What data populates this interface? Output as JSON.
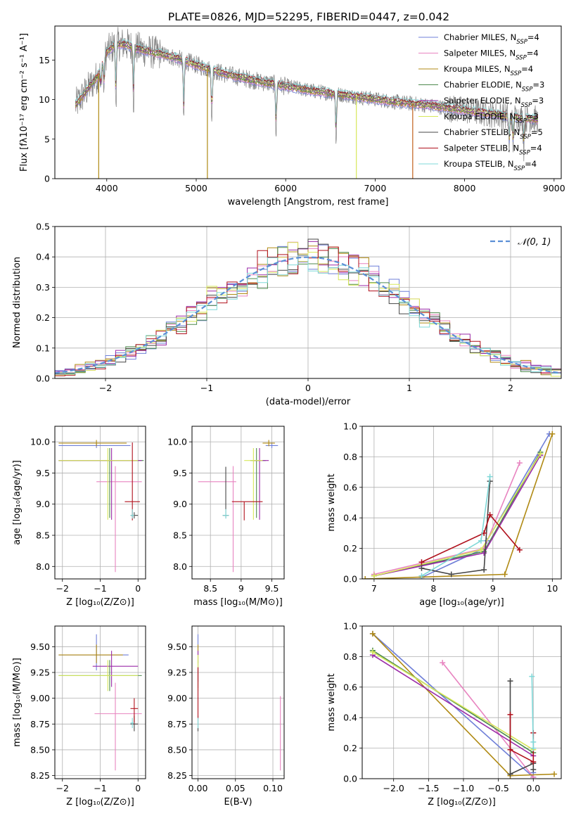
{
  "figure_title": "PLATE=0826, MJD=52295, FIBERID=0447, z=0.042",
  "models": [
    {
      "name": "Chabrier MILES, N",
      "sub": "SSP",
      "eq": "=4",
      "color": "#6f7fd8"
    },
    {
      "name": "Salpeter MILES, N",
      "sub": "SSP",
      "eq": "=4",
      "color": "#e884c0"
    },
    {
      "name": "Kroupa MILES, N",
      "sub": "SSP",
      "eq": "=4",
      "color": "#b08a14"
    },
    {
      "name": "Chabrier ELODIE, N",
      "sub": "SSP",
      "eq": "=3",
      "color": "#4d8a4d"
    },
    {
      "name": "Salpeter ELODIE, N",
      "sub": "SSP",
      "eq": "=3",
      "color": "#9a2aa8"
    },
    {
      "name": "Kroupa ELODIE, N",
      "sub": "SSP",
      "eq": "=3",
      "color": "#d7e85a"
    },
    {
      "name": "Chabrier STELIB, N",
      "sub": "SSP",
      "eq": "=5",
      "color": "#474747"
    },
    {
      "name": "Salpeter STELIB, N",
      "sub": "SSP",
      "eq": "=4",
      "color": "#b0101c"
    },
    {
      "name": "Kroupa STELIB, N",
      "sub": "SSP",
      "eq": "=4",
      "color": "#7fd8d8"
    }
  ],
  "chart_data": [
    {
      "id": "spectrum",
      "type": "line",
      "title": "PLATE=0826, MJD=52295, FIBERID=0447, z=0.042",
      "xlabel": "wavelength [Angstrom, rest frame]",
      "ylabel": "Flux [fλ10⁻¹⁷ erg cm⁻² s⁻¹ A⁻¹]",
      "xlim": [
        3420,
        9080
      ],
      "ylim": [
        0,
        19.3
      ],
      "xticks": [
        4000,
        5000,
        6000,
        7000,
        8000,
        9000
      ],
      "yticks": [
        0,
        5,
        10,
        15
      ],
      "grid": false,
      "legend": "top-right",
      "data_color": "#808080",
      "continuum": [
        [
          3650,
          9.3
        ],
        [
          3700,
          10.0
        ],
        [
          3800,
          11.5
        ],
        [
          3900,
          13.0
        ],
        [
          4000,
          16.0
        ],
        [
          4100,
          17.0
        ],
        [
          4200,
          17.0
        ],
        [
          4300,
          16.6
        ],
        [
          4500,
          16.0
        ],
        [
          4700,
          15.5
        ],
        [
          4900,
          14.8
        ],
        [
          5100,
          14.0
        ],
        [
          5300,
          13.3
        ],
        [
          5500,
          12.8
        ],
        [
          5700,
          12.3
        ],
        [
          5900,
          11.9
        ],
        [
          6100,
          11.5
        ],
        [
          6300,
          11.1
        ],
        [
          6500,
          10.8
        ],
        [
          6700,
          10.5
        ],
        [
          6900,
          10.2
        ],
        [
          7100,
          9.9
        ],
        [
          7300,
          9.6
        ],
        [
          7500,
          9.4
        ],
        [
          7700,
          9.1
        ],
        [
          7900,
          8.8
        ],
        [
          8100,
          8.5
        ],
        [
          8300,
          8.2
        ],
        [
          8500,
          7.9
        ],
        [
          8700,
          7.6
        ],
        [
          8820,
          7.5
        ]
      ],
      "absorption_features": [
        [
          3934,
          5.0
        ],
        [
          3969,
          6.0
        ],
        [
          4102,
          12.0
        ],
        [
          4300,
          11.5
        ],
        [
          4861,
          12.5
        ],
        [
          5175,
          11.8
        ],
        [
          5893,
          10.5
        ],
        [
          6563,
          10.0
        ],
        [
          8498,
          6.5
        ],
        [
          8542,
          6.0
        ],
        [
          8662,
          6.2
        ]
      ],
      "dropouts": [
        [
          3910,
          "#b08a14"
        ],
        [
          5125,
          "#b08a14"
        ],
        [
          6790,
          "#d7e85a"
        ],
        [
          7420,
          "#c0601c"
        ]
      ]
    },
    {
      "id": "residuals",
      "type": "line",
      "xlabel": "(data-model)/error",
      "ylabel": "Normed distribution",
      "xlim": [
        -2.5,
        2.5
      ],
      "ylim": [
        0,
        0.5
      ],
      "xticks": [
        -2,
        -1,
        0,
        1,
        2
      ],
      "yticks": [
        0.0,
        0.1,
        0.2,
        0.3,
        0.4,
        0.5
      ],
      "grid": true,
      "legend": "top-right",
      "reference": {
        "label": "𝒩(0, 1)",
        "mu": 0,
        "sigma": 1,
        "color": "#5b8fd6"
      },
      "bin_width": 0.1
    },
    {
      "id": "age-vs-z",
      "type": "scatter",
      "xlabel": "Z [log₁₀(Z/Z⊙)]",
      "ylabel": "age  [log₁₀(age/yr)]",
      "xlim": [
        -2.2,
        0.2
      ],
      "ylim": [
        7.8,
        10.25
      ],
      "xticks": [
        -2,
        -1,
        0
      ],
      "yticks": [
        8.0,
        8.5,
        9.0,
        9.5,
        10.0
      ],
      "grid": true,
      "points": [
        {
          "m": 0,
          "x": -1.1,
          "xerr": [
            1.0,
            0.9
          ],
          "y": 9.94,
          "yerr": [
            0.04,
            0.05
          ]
        },
        {
          "m": 1,
          "x": -0.6,
          "xerr": [
            0.5,
            0.7
          ],
          "y": 9.36,
          "yerr": [
            1.45,
            0.25
          ]
        },
        {
          "m": 2,
          "x": -1.1,
          "xerr": [
            1.0,
            0.8
          ],
          "y": 9.98,
          "yerr": [
            0.05,
            0.05
          ]
        },
        {
          "m": 3,
          "x": -0.75,
          "xerr": [
            1.35,
            0.9
          ],
          "y": 9.7,
          "yerr": [
            0.92,
            0.2
          ]
        },
        {
          "m": 4,
          "x": -0.7,
          "xerr": [
            1.4,
            0.8
          ],
          "y": 9.7,
          "yerr": [
            0.95,
            0.2
          ]
        },
        {
          "m": 5,
          "x": -0.8,
          "xerr": [
            1.3,
            0.8
          ],
          "y": 9.7,
          "yerr": [
            0.95,
            0.2
          ]
        },
        {
          "m": 6,
          "x": -0.1,
          "xerr": [
            0.1,
            0.1
          ],
          "y": 8.82,
          "yerr": [
            0.05,
            0.05
          ]
        },
        {
          "m": 7,
          "x": -0.15,
          "xerr": [
            0.2,
            0.2
          ],
          "y": 9.04,
          "yerr": [
            0.3,
            0.95
          ]
        },
        {
          "m": 8,
          "x": -0.15,
          "xerr": [
            0.05,
            0.05
          ],
          "y": 8.82,
          "yerr": [
            0.05,
            0.1
          ]
        }
      ]
    },
    {
      "id": "age-vs-mass",
      "type": "scatter",
      "xlabel": "mass [log₁₀(M/M⊙)]",
      "ylabel": "",
      "xlim": [
        8.2,
        9.7
      ],
      "ylim": [
        7.8,
        10.25
      ],
      "xticks": [
        8.5,
        9.0,
        9.5
      ],
      "yticks": [
        8.0,
        8.5,
        9.0,
        9.5,
        10.0
      ],
      "grid": true,
      "points": [
        {
          "m": 0,
          "x": 9.5,
          "xerr": [
            0.1,
            0.1
          ],
          "y": 9.94,
          "yerr": [
            0.04,
            0.05
          ]
        },
        {
          "m": 1,
          "x": 8.87,
          "xerr": [
            0.57,
            0.05
          ],
          "y": 9.36,
          "yerr": [
            1.45,
            0.25
          ]
        },
        {
          "m": 2,
          "x": 9.45,
          "xerr": [
            0.1,
            0.1
          ],
          "y": 9.98,
          "yerr": [
            0.05,
            0.05
          ]
        },
        {
          "m": 3,
          "x": 9.25,
          "xerr": [
            0.1,
            0.15
          ],
          "y": 9.7,
          "yerr": [
            0.92,
            0.2
          ]
        },
        {
          "m": 4,
          "x": 9.3,
          "xerr": [
            0.1,
            0.15
          ],
          "y": 9.7,
          "yerr": [
            0.95,
            0.2
          ]
        },
        {
          "m": 5,
          "x": 9.2,
          "xerr": [
            0.15,
            0.15
          ],
          "y": 9.7,
          "yerr": [
            0.95,
            0.2
          ]
        },
        {
          "m": 6,
          "x": 8.75,
          "xerr": [
            0.05,
            0.05
          ],
          "y": 8.82,
          "yerr": [
            0.05,
            0.78
          ]
        },
        {
          "m": 7,
          "x": 9.05,
          "xerr": [
            0.2,
            0.3
          ],
          "y": 9.04,
          "yerr": [
            0.3,
            0.0
          ]
        },
        {
          "m": 8,
          "x": 8.75,
          "xerr": [
            0.05,
            0.05
          ],
          "y": 8.82,
          "yerr": [
            0.05,
            0.1
          ]
        }
      ]
    },
    {
      "id": "mass-weight-vs-age",
      "type": "line",
      "xlabel": "age  [log₁₀(age/yr)]",
      "ylabel": "mass weight",
      "xlim": [
        6.8,
        10.15
      ],
      "ylim": [
        0,
        1.0
      ],
      "xticks": [
        7,
        8,
        9,
        10
      ],
      "yticks": [
        0.0,
        0.2,
        0.4,
        0.6,
        0.8,
        1.0
      ],
      "grid": true,
      "series": [
        {
          "m": 0,
          "x": [
            7.8,
            8.85,
            8.9,
            9.95
          ],
          "y": [
            0.01,
            0.2,
            0.25,
            0.95
          ]
        },
        {
          "m": 1,
          "x": [
            7.0,
            8.85,
            9.45
          ],
          "y": [
            0.03,
            0.2,
            0.76
          ]
        },
        {
          "m": 2,
          "x": [
            6.85,
            9.2,
            10.0
          ],
          "y": [
            0.0,
            0.03,
            0.95
          ]
        },
        {
          "m": 3,
          "x": [
            7.0,
            8.85,
            9.8
          ],
          "y": [
            0.02,
            0.18,
            0.83
          ]
        },
        {
          "m": 4,
          "x": [
            7.0,
            8.85,
            9.8
          ],
          "y": [
            0.02,
            0.17,
            0.81
          ]
        },
        {
          "m": 5,
          "x": [
            7.0,
            8.8,
            9.8
          ],
          "y": [
            0.02,
            0.19,
            0.82
          ]
        },
        {
          "m": 6,
          "x": [
            7.8,
            8.3,
            8.85,
            8.95
          ],
          "y": [
            0.07,
            0.03,
            0.06,
            0.64
          ]
        },
        {
          "m": 7,
          "x": [
            7.8,
            8.85,
            8.95,
            9.45
          ],
          "y": [
            0.11,
            0.3,
            0.42,
            0.19
          ]
        },
        {
          "m": 8,
          "x": [
            7.8,
            8.8,
            8.95
          ],
          "y": [
            0.02,
            0.25,
            0.67
          ]
        }
      ]
    },
    {
      "id": "mass-vs-z",
      "type": "scatter",
      "xlabel": "Z [log₁₀(Z/Z⊙)]",
      "ylabel": "mass [log₁₀(M/M⊙)]",
      "xlim": [
        -2.2,
        0.2
      ],
      "ylim": [
        8.22,
        9.7
      ],
      "xticks": [
        -2,
        -1,
        0
      ],
      "yticks": [
        8.25,
        8.5,
        8.75,
        9.0,
        9.25,
        9.5
      ],
      "grid": true,
      "points": [
        {
          "m": 0,
          "x": -1.1,
          "xerr": [
            1.0,
            0.85
          ],
          "y": 9.42,
          "yerr": [
            0.15,
            0.2
          ]
        },
        {
          "m": 1,
          "x": -0.6,
          "xerr": [
            0.55,
            0.7
          ],
          "y": 8.85,
          "yerr": [
            0.55,
            0.3
          ]
        },
        {
          "m": 2,
          "x": -1.1,
          "xerr": [
            1.0,
            0.7
          ],
          "y": 9.42,
          "yerr": [
            0.08,
            0.1
          ]
        },
        {
          "m": 3,
          "x": -0.75,
          "xerr": [
            1.35,
            0.85
          ],
          "y": 9.22,
          "yerr": [
            0.15,
            0.15
          ]
        },
        {
          "m": 4,
          "x": -0.7,
          "xerr": [
            0.5,
            0.7
          ],
          "y": 9.31,
          "yerr": [
            0.2,
            0.15
          ]
        },
        {
          "m": 5,
          "x": -0.8,
          "xerr": [
            1.3,
            0.8
          ],
          "y": 9.22,
          "yerr": [
            0.15,
            0.15
          ]
        },
        {
          "m": 6,
          "x": -0.1,
          "xerr": [
            0.1,
            0.1
          ],
          "y": 8.75,
          "yerr": [
            0.07,
            0.08
          ]
        },
        {
          "m": 7,
          "x": -0.1,
          "xerr": [
            0.1,
            0.1
          ],
          "y": 8.9,
          "yerr": [
            0.15,
            0.1
          ]
        },
        {
          "m": 8,
          "x": -0.15,
          "xerr": [
            0.05,
            0.05
          ],
          "y": 8.76,
          "yerr": [
            0.05,
            0.05
          ]
        }
      ]
    },
    {
      "id": "mass-vs-ebv",
      "type": "scatter",
      "xlabel": "E(B-V)",
      "ylabel": "",
      "xlim": [
        -0.008,
        0.115
      ],
      "ylim": [
        8.22,
        9.7
      ],
      "xticks": [
        0.0,
        0.05,
        0.1
      ],
      "xticklabels": [
        "0.00",
        "0.05",
        "0.10"
      ],
      "yticks": [
        8.25,
        8.5,
        8.75,
        9.0,
        9.25,
        9.5
      ],
      "grid": true,
      "points": [
        {
          "m": 0,
          "x": 0.0,
          "y": 9.5,
          "yerr": [
            0.08,
            0.12
          ]
        },
        {
          "m": 1,
          "x": 0.11,
          "y": 8.65,
          "yerr": [
            0.35,
            0.37
          ]
        },
        {
          "m": 2,
          "x": 0.0,
          "y": 9.42,
          "yerr": [
            0.08,
            0.1
          ]
        },
        {
          "m": 3,
          "x": 0.0,
          "y": 9.22,
          "yerr": [
            0.12,
            0.15
          ]
        },
        {
          "m": 4,
          "x": 0.0,
          "y": 9.31,
          "yerr": [
            0.15,
            0.15
          ]
        },
        {
          "m": 5,
          "x": 0.0,
          "y": 9.22,
          "yerr": [
            0.15,
            0.2
          ]
        },
        {
          "m": 6,
          "x": 0.0,
          "y": 8.75,
          "yerr": [
            0.07,
            0.08
          ]
        },
        {
          "m": 7,
          "x": 0.0,
          "y": 9.1,
          "yerr": [
            0.3,
            0.2
          ]
        },
        {
          "m": 8,
          "x": 0.0,
          "y": 8.76,
          "yerr": [
            0.05,
            0.05
          ]
        }
      ]
    },
    {
      "id": "mass-weight-vs-z",
      "type": "line",
      "xlabel": "Z [log₁₀(Z/Z⊙)]",
      "ylabel": "mass weight",
      "xlim": [
        -2.45,
        0.4
      ],
      "ylim": [
        0,
        1.0
      ],
      "xticks": [
        -2.0,
        -1.5,
        -1.0,
        -0.5,
        0.0
      ],
      "xticklabels": [
        "−2.0",
        "−1.5",
        "−1.0",
        "−0.5",
        "0.0"
      ],
      "yticks": [
        0.0,
        0.2,
        0.4,
        0.6,
        0.8,
        1.0
      ],
      "grid": true,
      "series": [
        {
          "m": 0,
          "x": [
            -2.3,
            0.0,
            0.0
          ],
          "y": [
            0.95,
            0.01,
            0.04
          ]
        },
        {
          "m": 1,
          "x": [
            -1.3,
            0.0
          ],
          "y": [
            0.76,
            0.01
          ]
        },
        {
          "m": 2,
          "x": [
            -2.3,
            -0.33,
            0.3
          ],
          "y": [
            0.95,
            0.02,
            0.03
          ]
        },
        {
          "m": 3,
          "x": [
            -2.3,
            0.0
          ],
          "y": [
            0.84,
            0.17
          ]
        },
        {
          "m": 4,
          "x": [
            -2.3,
            0.0
          ],
          "y": [
            0.81,
            0.15
          ]
        },
        {
          "m": 5,
          "x": [
            -2.3,
            0.0
          ],
          "y": [
            0.83,
            0.19
          ]
        },
        {
          "m": 6,
          "x": [
            -0.33,
            -0.33,
            0.0,
            0.0
          ],
          "y": [
            0.64,
            0.03,
            0.1,
            0.06
          ]
        },
        {
          "m": 7,
          "x": [
            -0.33,
            -0.33,
            0.0,
            0.0
          ],
          "y": [
            0.42,
            0.19,
            0.11,
            0.3
          ]
        },
        {
          "m": 8,
          "x": [
            -0.02,
            0.0,
            0.0
          ],
          "y": [
            0.67,
            0.2,
            0.24
          ]
        }
      ]
    }
  ]
}
